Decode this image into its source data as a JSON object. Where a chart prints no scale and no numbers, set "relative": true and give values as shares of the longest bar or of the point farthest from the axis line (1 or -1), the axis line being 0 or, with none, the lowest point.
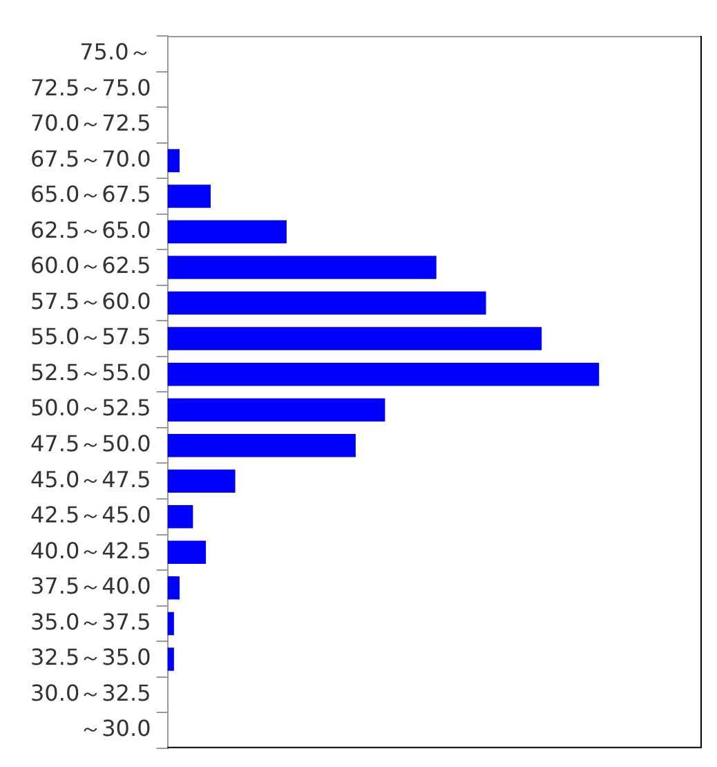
{
  "chart_data": {
    "type": "bar",
    "orientation": "horizontal",
    "relative": true,
    "categories": [
      "75.0～",
      "72.5～75.0",
      "70.0～72.5",
      "67.5～70.0",
      "65.0～67.5",
      "62.5～65.0",
      "60.0～62.5",
      "57.5～60.0",
      "55.0～57.5",
      "52.5～55.0",
      "50.0～52.5",
      "47.5～50.0",
      "45.0～47.5",
      "42.5～45.0",
      "40.0～42.5",
      "37.5～40.0",
      "35.0～37.5",
      "32.5～35.0",
      "30.0～32.5",
      "～30.0"
    ],
    "values": [
      0,
      0,
      0,
      0.028,
      0.1,
      0.276,
      0.623,
      0.738,
      0.867,
      1,
      0.504,
      0.436,
      0.157,
      0.059,
      0.089,
      0.028,
      0.015,
      0.015,
      0,
      0
    ],
    "color": "#0000ff",
    "grid": false,
    "legend": false
  }
}
